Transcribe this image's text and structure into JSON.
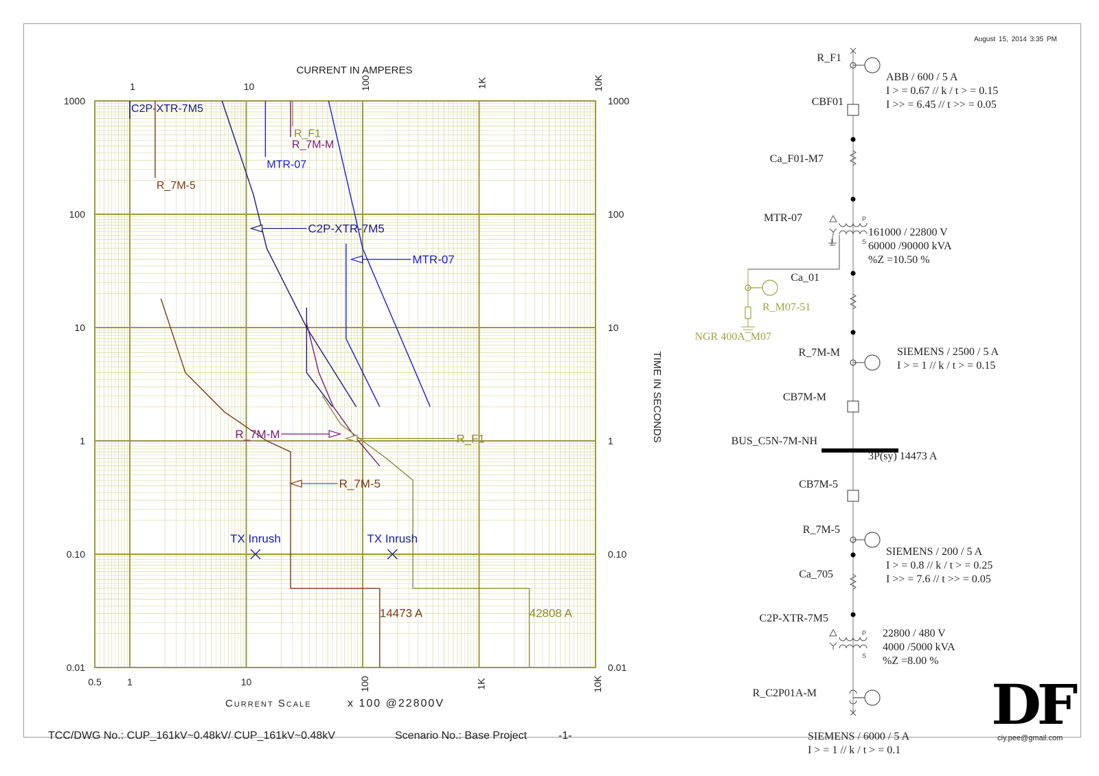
{
  "header": {
    "date": "August 15, 2014   3:35 PM",
    "current_title": "CURRENT IN AMPERES",
    "time_title": "TIME IN SECONDS",
    "scale_label": "Current Scale",
    "scale_suffix": "x 100  @22800V"
  },
  "footer": {
    "dwg": "TCC/DWG No.:  CUP_161kV~0.48kV/ CUP_161kV~0.48kV",
    "scenario": "Scenario No.: Base Project",
    "page": "-1-",
    "email": "ciy.pee@gmail.com",
    "logo": "DF"
  },
  "colors": {
    "grid": "#9a9a3a",
    "grid_minor": "#d6d69a",
    "c2p": "#1a1a7a",
    "r7m5": "#7a3a1a",
    "mtr07": "#1a1ad6",
    "r7mm": "#7a1a7a",
    "rf1": "#8a8a3a",
    "tx": "#1a1aaa",
    "ngr": "#a0a040"
  },
  "chart_data": {
    "type": "line",
    "x_scale": "log",
    "y_scale": "log",
    "xlim": [
      50,
      1000000
    ],
    "ylim": [
      0.01,
      1000
    ],
    "x_top_ticks": [
      "1",
      "10",
      "100",
      "1K",
      "10K"
    ],
    "x_bottom_ticks": [
      "0.5",
      "1",
      "10",
      "100",
      "1K",
      "10K"
    ],
    "y_ticks": [
      "1000",
      "100",
      "10",
      "1",
      "0.10",
      "0.01"
    ],
    "grid": true,
    "series": [
      {
        "name": "C2P-XTR-7M5",
        "color": "#1a1a7a",
        "segments": [
          [
            [
              100,
              1000
            ],
            [
              100,
              700
            ]
          ],
          [
            [
              620,
              1000
            ],
            [
              1150,
              150
            ],
            [
              1500,
              50
            ],
            [
              3300,
              10
            ],
            [
              8800,
              2
            ]
          ],
          [
            [
              3300,
              15
            ],
            [
              3300,
              4
            ],
            [
              5500,
              2
            ]
          ]
        ],
        "labels": [
          {
            "text": "C2P-XTR-7M5",
            "x": 100,
            "y": 1000
          }
        ],
        "arrow": {
          "tip": [
            1100,
            75
          ],
          "tail": [
            3300,
            75
          ],
          "text": "C2P-XTR-7M5"
        }
      },
      {
        "name": "R_7M-5",
        "color": "#7a3a1a",
        "segments": [
          [
            [
              165,
              1000
            ],
            [
              165,
              210
            ]
          ],
          [
            [
              185,
              18
            ],
            [
              300,
              4
            ],
            [
              650,
              1.8
            ],
            [
              1500,
              1
            ],
            [
              2400,
              0.8
            ],
            [
              2400,
              0.05
            ],
            [
              14000,
              0.05
            ]
          ],
          [
            [
              14000,
              0.05
            ],
            [
              14000,
              0.01
            ]
          ]
        ],
        "labels": [
          {
            "text": "R_7M-5",
            "x": 165,
            "y": 210
          }
        ],
        "arrow": {
          "tip": [
            2400,
            0.42
          ],
          "tail": [
            6100,
            0.42
          ],
          "text": "R_7M-5"
        }
      },
      {
        "name": "MTR-07",
        "color": "#1a1ad6",
        "segments": [
          [
            [
              1460,
              1000
            ],
            [
              1460,
              320
            ]
          ],
          [
            [
              5100,
              1000
            ],
            [
              10000,
              50
            ],
            [
              38000,
              2
            ]
          ],
          [
            [
              7200,
              55
            ],
            [
              7200,
              8
            ],
            [
              14000,
              2
            ]
          ]
        ],
        "labels": [
          {
            "text": "MTR-07",
            "x": 1460,
            "y": 320
          }
        ],
        "arrow": {
          "tip": [
            8000,
            40
          ],
          "tail": [
            26000,
            40
          ],
          "text": "MTR-07"
        }
      },
      {
        "name": "R_7M-M",
        "color": "#7a1a7a",
        "segments": [
          [
            [
              2400,
              1000
            ],
            [
              2400,
              480
            ]
          ],
          [
            [
              3300,
              11
            ],
            [
              4200,
              4
            ],
            [
              5600,
              2
            ],
            [
              8500,
              1.1
            ],
            [
              14000,
              0.6
            ]
          ]
        ],
        "labels": [
          {
            "text": "R_7M-M",
            "x": 2400,
            "y": 480
          }
        ],
        "arrow": {
          "tip": [
            6400,
            1.15
          ],
          "tail": [
            2000,
            1.15
          ],
          "text": "R_7M-M"
        }
      },
      {
        "name": "R_F1",
        "color": "#8a8a3a",
        "segments": [
          [
            [
              2500,
              1000
            ],
            [
              2500,
              600
            ]
          ],
          [
            [
              4500,
              2.5
            ],
            [
              6500,
              1.4
            ],
            [
              10000,
              1
            ],
            [
              16000,
              0.7
            ],
            [
              27000,
              0.45
            ],
            [
              27000,
              0.05
            ],
            [
              270000,
              0.05
            ]
          ],
          [
            [
              270000,
              0.05
            ],
            [
              270000,
              0.01
            ]
          ]
        ],
        "labels": [
          {
            "text": "R_F1",
            "x": 2500,
            "y": 600
          }
        ],
        "arrow": {
          "tip": [
            7200,
            1.05
          ],
          "tail": [
            62000,
            1.05
          ],
          "text": "R_F1"
        }
      }
    ],
    "annotations": [
      {
        "text": "TX Inrush",
        "x": 1200,
        "y": 0.1,
        "marker": "x",
        "color": "#1a1aaa"
      },
      {
        "text": "TX Inrush",
        "x": 18000,
        "y": 0.1,
        "marker": "x",
        "color": "#1a1aaa"
      },
      {
        "text": "14473 A",
        "x": 14000,
        "y": 0.03,
        "color": "#7a3a1a"
      },
      {
        "text": "42808 A",
        "x": 270000,
        "y": 0.03,
        "color": "#8a8a3a"
      }
    ]
  },
  "one_line": {
    "nodes": [
      {
        "label": "R_F1",
        "info": [
          "ABB   /  600 / 5 A",
          "I > = 0.67   // k / t > = 0.15",
          "I >> = 6.45   // t >> = 0.05"
        ]
      },
      {
        "label": "CBF01",
        "info": []
      },
      {
        "label": "Ca_F01-M7",
        "info": []
      },
      {
        "label": "MTR-07",
        "info": [
          "161000 / 22800 V",
          "60000 /90000 kVA",
          "%Z =10.50 %"
        ]
      },
      {
        "label": "Ca_01",
        "info": []
      },
      {
        "label": "R_M07-51",
        "info": []
      },
      {
        "label": "NGR 400A_M07",
        "info": []
      },
      {
        "label": "R_7M-M",
        "info": [
          "SIEMENS   /  2500 / 5 A",
          "I > = 1   // k / t > = 0.15"
        ]
      },
      {
        "label": "CB7M-M",
        "info": []
      },
      {
        "label": "BUS_C5N-7M-NH",
        "info": [
          "3P(sy) 14473 A"
        ]
      },
      {
        "label": "CB7M-5",
        "info": []
      },
      {
        "label": "R_7M-5",
        "info": [
          "SIEMENS   /  200 / 5 A",
          "I > = 0.8   // k / t > = 0.25",
          "I >> = 7.6   // t >> = 0.05"
        ]
      },
      {
        "label": "Ca_705",
        "info": []
      },
      {
        "label": "C2P-XTR-7M5",
        "info": [
          "22800 / 480 V",
          "4000 /5000 kVA",
          "%Z =8.00 %"
        ]
      },
      {
        "label": "R_C2P01A-M",
        "info": [
          "SIEMENS   /  6000 / 5 A",
          "I > = 1   // k / t > = 0.1"
        ]
      }
    ]
  }
}
